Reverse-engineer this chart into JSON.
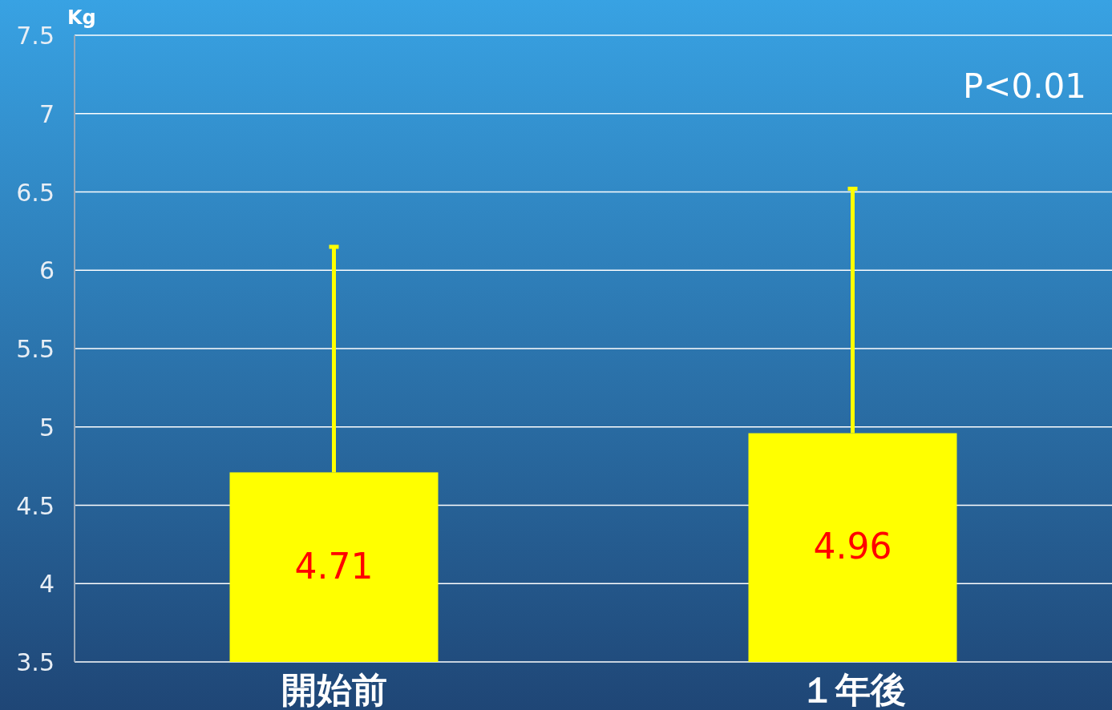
{
  "chart_data": {
    "type": "bar",
    "ylabel": "Kg",
    "annotations": [
      "P<0.01"
    ],
    "categories": [
      "開始前",
      "１年後"
    ],
    "values": [
      4.71,
      4.96
    ],
    "errors": [
      [
        4.71,
        6.15
      ],
      [
        4.96,
        6.52
      ]
    ],
    "color": "#ffff00",
    "data_labels": true,
    "ylim": [
      3.5,
      7.5
    ],
    "yticks": [
      3.5,
      4,
      4.5,
      5,
      5.5,
      6,
      6.5,
      7,
      7.5
    ],
    "grid": "y"
  }
}
